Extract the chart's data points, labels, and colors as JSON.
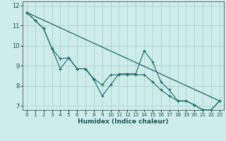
{
  "xlabel": "Humidex (Indice chaleur)",
  "bg_color": "#ceecea",
  "grid_color": "#aed4d0",
  "line_color": "#1a6b6b",
  "xlim": [
    -0.5,
    23.5
  ],
  "ylim": [
    6.8,
    12.2
  ],
  "yticks": [
    7,
    8,
    9,
    10,
    11,
    12
  ],
  "xticks": [
    0,
    1,
    2,
    3,
    4,
    5,
    6,
    7,
    8,
    9,
    10,
    11,
    12,
    13,
    14,
    15,
    16,
    17,
    18,
    19,
    20,
    21,
    22,
    23
  ],
  "series1_x": [
    0,
    1,
    2,
    3,
    4,
    5,
    6,
    7,
    8,
    9,
    10,
    11,
    12,
    13,
    14,
    15,
    16,
    17,
    18,
    19,
    20,
    21,
    22,
    23
  ],
  "series1_y": [
    11.65,
    11.25,
    10.85,
    9.85,
    8.85,
    9.4,
    8.85,
    8.85,
    8.3,
    7.5,
    8.05,
    8.6,
    8.6,
    8.6,
    9.75,
    9.2,
    8.2,
    7.8,
    7.25,
    7.25,
    7.05,
    6.8,
    6.8,
    7.25
  ],
  "series2_x": [
    0,
    1,
    2,
    3,
    4,
    5,
    6,
    7,
    8,
    9,
    10,
    11,
    12,
    13,
    14,
    15,
    16,
    17,
    18,
    19,
    20,
    21,
    22,
    23
  ],
  "series2_y": [
    11.65,
    11.25,
    10.85,
    9.85,
    9.35,
    9.4,
    8.85,
    8.85,
    8.35,
    8.05,
    8.55,
    8.55,
    8.55,
    8.55,
    8.55,
    8.2,
    7.8,
    7.5,
    7.25,
    7.25,
    7.05,
    6.8,
    6.8,
    7.25
  ],
  "trend_x": [
    0,
    23
  ],
  "trend_y": [
    11.65,
    7.25
  ]
}
